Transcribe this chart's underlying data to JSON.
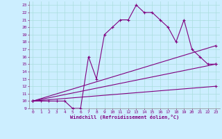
{
  "xlabel": "Windchill (Refroidissement éolien,°C)",
  "bg_color": "#cceeff",
  "line_color": "#800080",
  "grid_color": "#aadddd",
  "xlim": [
    -0.5,
    23.5
  ],
  "ylim": [
    9,
    23.5
  ],
  "xticks": [
    0,
    1,
    2,
    3,
    4,
    5,
    6,
    7,
    8,
    9,
    10,
    11,
    12,
    13,
    14,
    15,
    16,
    17,
    18,
    19,
    20,
    21,
    22,
    23
  ],
  "yticks": [
    9,
    10,
    11,
    12,
    13,
    14,
    15,
    16,
    17,
    18,
    19,
    20,
    21,
    22,
    23
  ],
  "series0_x": [
    0,
    1,
    2,
    3,
    4,
    5,
    6,
    7,
    8,
    9,
    10,
    11,
    12,
    13,
    14,
    15,
    16,
    17,
    18,
    19,
    20,
    21,
    22,
    23
  ],
  "series0_y": [
    10,
    10,
    10,
    10,
    10,
    9,
    9,
    16,
    13,
    19,
    20,
    21,
    21,
    23,
    22,
    22,
    21,
    20,
    18,
    21,
    17,
    16,
    15,
    15
  ],
  "series1_x": [
    0,
    23
  ],
  "series1_y": [
    10,
    17.5
  ],
  "series2_x": [
    0,
    23
  ],
  "series2_y": [
    10,
    15
  ],
  "series3_x": [
    0,
    23
  ],
  "series3_y": [
    10,
    12
  ]
}
